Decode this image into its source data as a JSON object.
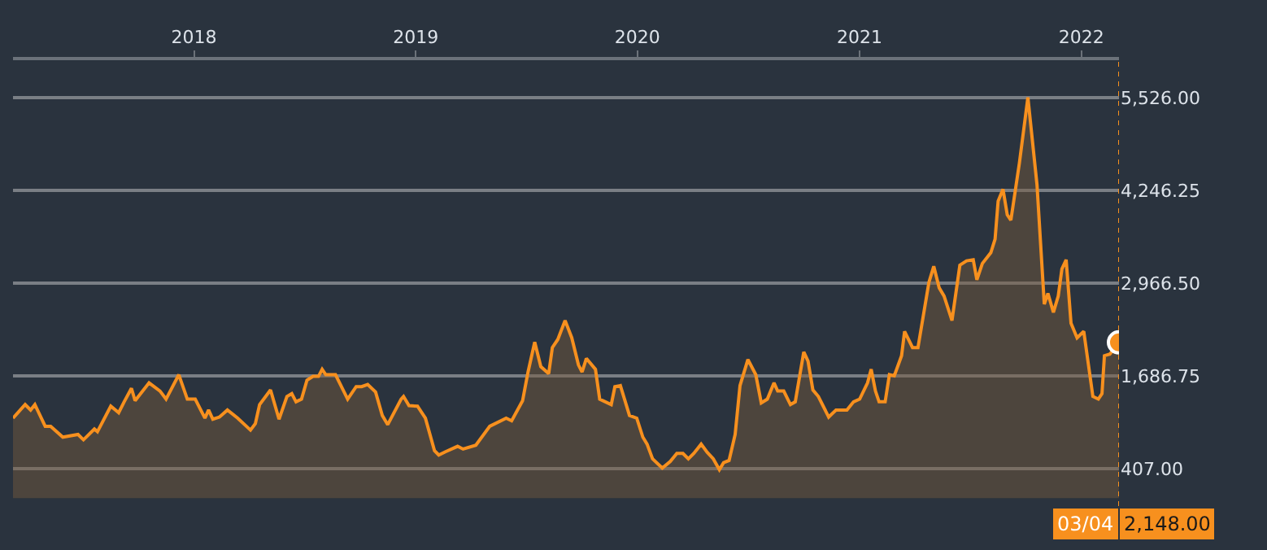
{
  "chart_data": {
    "type": "area",
    "x": [
      "2017-03-09",
      "2017-03-29",
      "2017-04-07",
      "2017-04-14",
      "2017-05-01",
      "2017-05-10",
      "2017-05-30",
      "2017-06-24",
      "2017-07-03",
      "2017-07-21",
      "2017-07-26",
      "2017-08-17",
      "2017-08-30",
      "2017-09-08",
      "2017-09-20",
      "2017-09-26",
      "2017-10-19",
      "2017-11-06",
      "2017-11-16",
      "2017-12-07",
      "2017-12-21",
      "2018-01-03",
      "2018-01-19",
      "2018-01-25",
      "2018-02-01",
      "2018-02-12",
      "2018-02-25",
      "2018-03-14",
      "2018-04-04",
      "2018-04-12",
      "2018-04-19",
      "2018-05-07",
      "2018-05-21",
      "2018-06-03",
      "2018-06-11",
      "2018-06-18",
      "2018-06-27",
      "2018-07-06",
      "2018-07-16",
      "2018-07-25",
      "2018-07-31",
      "2018-08-06",
      "2018-08-22",
      "2018-09-11",
      "2018-09-25",
      "2018-10-04",
      "2018-10-14",
      "2018-10-27",
      "2018-11-07",
      "2018-11-16",
      "2018-12-08",
      "2018-12-12",
      "2018-12-21",
      "2019-01-04",
      "2019-01-17",
      "2019-02-01",
      "2019-02-08",
      "2019-02-19",
      "2019-03-11",
      "2019-03-20",
      "2019-04-10",
      "2019-05-03",
      "2019-05-30",
      "2019-06-08",
      "2019-06-26",
      "2019-07-05",
      "2019-07-16",
      "2019-07-26",
      "2019-08-08",
      "2019-08-14",
      "2019-08-23",
      "2019-09-04",
      "2019-09-15",
      "2019-09-26",
      "2019-10-02",
      "2019-10-09",
      "2019-10-24",
      "2019-10-31",
      "2019-11-19",
      "2019-11-25",
      "2019-12-04",
      "2019-12-19",
      "2019-12-31",
      "2020-01-10",
      "2020-01-17",
      "2020-01-26",
      "2020-02-11",
      "2020-02-24",
      "2020-03-06",
      "2020-03-16",
      "2020-03-25",
      "2020-04-03",
      "2020-04-15",
      "2020-04-25",
      "2020-05-05",
      "2020-05-15",
      "2020-05-22",
      "2020-05-31",
      "2020-06-10",
      "2020-06-18",
      "2020-07-01",
      "2020-07-14",
      "2020-07-23",
      "2020-08-02",
      "2020-08-13",
      "2020-08-19",
      "2020-08-29",
      "2020-09-09",
      "2020-09-17",
      "2020-10-01",
      "2020-10-08",
      "2020-10-16",
      "2020-10-25",
      "2020-11-11",
      "2020-11-23",
      "2020-12-11",
      "2020-12-22",
      "2021-01-01",
      "2021-01-14",
      "2021-01-20",
      "2021-01-27",
      "2021-02-02",
      "2021-02-12",
      "2021-02-19",
      "2021-02-27",
      "2021-03-11",
      "2021-03-16",
      "2021-03-29",
      "2021-04-07",
      "2021-04-25",
      "2021-05-03",
      "2021-05-12",
      "2021-05-20",
      "2021-06-02",
      "2021-06-15",
      "2021-06-26",
      "2021-07-07",
      "2021-07-13",
      "2021-07-22",
      "2021-08-05",
      "2021-08-12",
      "2021-08-17",
      "2021-08-25",
      "2021-09-01",
      "2021-09-07",
      "2021-09-21",
      "2021-10-05",
      "2021-10-20",
      "2021-11-01",
      "2021-11-07",
      "2021-11-16",
      "2021-11-24",
      "2021-11-30",
      "2021-12-07",
      "2021-12-15",
      "2021-12-25",
      "2022-01-05",
      "2022-01-20",
      "2022-01-29",
      "2022-02-04",
      "2022-02-08",
      "2022-02-17",
      "2022-03-04"
    ],
    "series": [
      {
        "color": "#f7901e",
        "values": [
          1103,
          1290,
          1215,
          1290,
          991,
          991,
          841,
          878,
          804,
          953,
          916,
          1268,
          1178,
          1328,
          1515,
          1343,
          1589,
          1477,
          1365,
          1702,
          1365,
          1365,
          1103,
          1215,
          1088,
          1118,
          1215,
          1103,
          938,
          1028,
          1290,
          1492,
          1088,
          1402,
          1440,
          1328,
          1365,
          1627,
          1679,
          1679,
          1777,
          1702,
          1702,
          1365,
          1537,
          1537,
          1567,
          1462,
          1140,
          1013,
          1365,
          1402,
          1275,
          1268,
          1103,
          654,
          594,
          639,
          714,
          676,
          729,
          991,
          1103,
          1066,
          1343,
          1739,
          2151,
          1814,
          1717,
          2076,
          2188,
          2450,
          2211,
          1836,
          1739,
          1926,
          1777,
          1365,
          1290,
          1537,
          1552,
          1140,
          1103,
          841,
          744,
          542,
          414,
          504,
          617,
          617,
          542,
          617,
          744,
          632,
          542,
          392,
          489,
          519,
          878,
          1552,
          1911,
          1702,
          1313,
          1365,
          1589,
          1477,
          1477,
          1290,
          1328,
          2016,
          1889,
          1492,
          1402,
          1118,
          1215,
          1215,
          1328,
          1365,
          1589,
          1777,
          1477,
          1328,
          1328,
          1702,
          1687,
          1964,
          2300,
          2076,
          2076,
          2974,
          3198,
          2899,
          2787,
          2450,
          3213,
          3273,
          3288,
          3011,
          3236,
          3386,
          3573,
          4097,
          4261,
          3909,
          3834,
          4620,
          5526,
          4321,
          2675,
          2824,
          2562,
          2787,
          3161,
          3288,
          2413,
          2211,
          2300,
          1402,
          1365,
          1440,
          1964,
          1986,
          2148
        ]
      }
    ],
    "xlim": [
      "2017-03-09",
      "2022-03-04"
    ],
    "xticks": [
      "2018",
      "2019",
      "2020",
      "2021",
      "2022"
    ],
    "ylim": [
      -110,
      6040
    ],
    "yticks": [
      {
        "value": 407,
        "label": "407.00"
      },
      {
        "value": 1686.75,
        "label": "1,686.75"
      },
      {
        "value": 2966.5,
        "label": "2,966.50"
      },
      {
        "value": 4246.25,
        "label": "4,246.25"
      },
      {
        "value": 5526,
        "label": "5,526.00"
      }
    ],
    "grid": "y",
    "marker": "none",
    "ref_lines": [
      {
        "axis": "x",
        "value": "2022-03-04",
        "color": "#f7901e",
        "line_style": "dotted"
      }
    ],
    "annotations": [
      "03/04",
      "2,148.00"
    ]
  }
}
